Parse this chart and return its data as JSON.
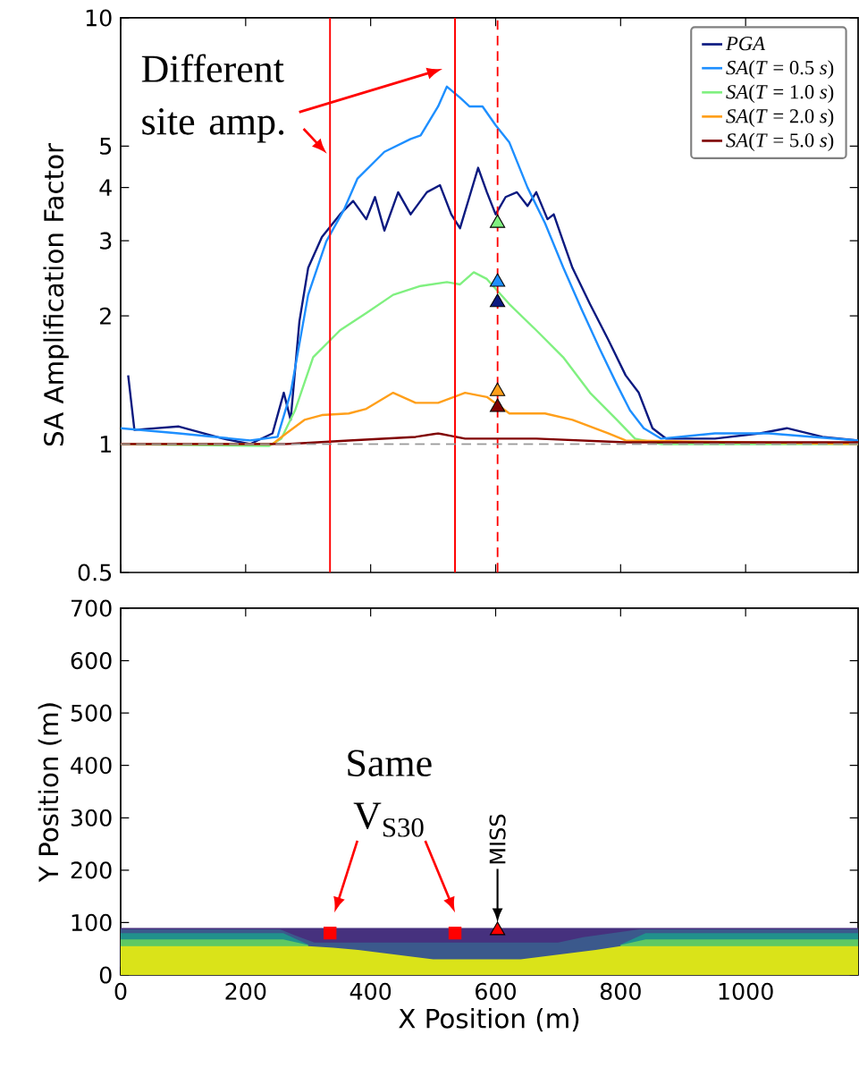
{
  "chart_data": [
    {
      "type": "line",
      "ylabel": "SA Amplification Factor",
      "log": "y",
      "legend": "top right",
      "tick_labels": "y",
      "xlim": [
        0,
        1180
      ],
      "ylim": [
        0.5,
        10
      ],
      "xticks": [
        0,
        200,
        400,
        600,
        800,
        1000
      ],
      "yticks": [
        0.5,
        1,
        2,
        3,
        4,
        5,
        10
      ],
      "annotations": [
        {
          "text": "Different site amp.",
          "x": 330,
          "y": 4.8
        }
      ],
      "ref_lines": [
        {
          "axis": "x",
          "value": 335,
          "color": "#ff0000",
          "line_style": "solid"
        },
        {
          "axis": "x",
          "value": 535,
          "color": "#ff0000",
          "line_style": "solid"
        },
        {
          "axis": "x",
          "value": 603,
          "color": "#ff0000",
          "line_style": "dashed"
        },
        {
          "axis": "y",
          "value": 1,
          "color": "#999999",
          "line_style": "dashed"
        }
      ],
      "series": [
        {
          "name": "*PGA*",
          "color": "#0c1a80",
          "x": [
            12,
            22,
            93,
            164,
            207,
            243,
            261,
            272,
            286,
            300,
            322,
            351,
            372,
            393,
            407,
            422,
            444,
            464,
            490,
            511,
            529,
            543,
            558,
            572,
            586,
            600,
            616,
            634,
            651,
            665,
            683,
            693,
            708,
            723,
            751,
            780,
            808,
            829,
            851,
            873,
            951,
            1023,
            1066,
            1123,
            1180
          ],
          "values": [
            1.45,
            1.08,
            1.1,
            1.03,
            1.0,
            1.06,
            1.32,
            1.14,
            1.94,
            2.59,
            3.06,
            3.46,
            3.72,
            3.37,
            3.8,
            3.17,
            3.9,
            3.46,
            3.9,
            4.05,
            3.46,
            3.21,
            3.8,
            4.45,
            3.9,
            3.46,
            3.8,
            3.9,
            3.62,
            3.9,
            3.37,
            3.46,
            2.99,
            2.59,
            2.13,
            1.76,
            1.45,
            1.32,
            1.09,
            1.03,
            1.03,
            1.06,
            1.09,
            1.04,
            1.02
          ]
        },
        {
          "name": "*SA*(*T* = 0.5 *s*)",
          "color": "#1e8fff",
          "x": [
            0,
            93,
            207,
            251,
            272,
            300,
            329,
            357,
            379,
            422,
            464,
            480,
            508,
            522,
            543,
            558,
            579,
            600,
            622,
            651,
            679,
            708,
            737,
            766,
            794,
            815,
            837,
            865,
            894,
            951,
            1037,
            1180
          ],
          "values": [
            1.09,
            1.06,
            1.02,
            1.04,
            1.32,
            2.24,
            2.99,
            3.54,
            4.2,
            4.85,
            5.2,
            5.3,
            6.2,
            6.9,
            6.5,
            6.2,
            6.2,
            5.6,
            5.1,
            4.0,
            3.3,
            2.6,
            2.08,
            1.68,
            1.38,
            1.2,
            1.09,
            1.03,
            1.04,
            1.06,
            1.06,
            1.02
          ]
        },
        {
          "name": "*SA*(*T* = 1.0 *s*)",
          "color": "#80f080",
          "x": [
            0,
            237,
            257,
            279,
            308,
            351,
            393,
            436,
            480,
            522,
            543,
            565,
            586,
            622,
            665,
            708,
            751,
            794,
            823,
            865,
            1180
          ],
          "values": [
            1.0,
            0.99,
            1.03,
            1.2,
            1.6,
            1.85,
            2.03,
            2.24,
            2.35,
            2.4,
            2.37,
            2.53,
            2.44,
            2.13,
            1.85,
            1.6,
            1.32,
            1.14,
            1.03,
            1.0,
            1.0
          ]
        },
        {
          "name": "*SA*(*T* = 2.0 *s*)",
          "color": "#ff9f1a",
          "x": [
            0,
            243,
            265,
            294,
            322,
            365,
            393,
            436,
            472,
            508,
            551,
            586,
            622,
            679,
            723,
            780,
            808,
            1180
          ],
          "values": [
            1.0,
            1.0,
            1.06,
            1.14,
            1.17,
            1.18,
            1.21,
            1.32,
            1.25,
            1.25,
            1.32,
            1.29,
            1.18,
            1.18,
            1.14,
            1.06,
            1.02,
            1.0
          ]
        },
        {
          "name": "*SA*(*T* = 5.0 *s*)",
          "color": "#800000",
          "x": [
            0,
            265,
            365,
            472,
            508,
            551,
            665,
            808,
            1180
          ],
          "values": [
            1.0,
            1.0,
            1.02,
            1.04,
            1.06,
            1.03,
            1.03,
            1.01,
            1.01
          ]
        },
        {
          "type": "scatter",
          "marker": "triangle",
          "color": "#80f080",
          "x": [
            603
          ],
          "values": [
            3.3
          ]
        },
        {
          "type": "scatter",
          "marker": "triangle",
          "color": "#1e8fff",
          "x": [
            603
          ],
          "values": [
            2.4
          ]
        },
        {
          "type": "scatter",
          "marker": "triangle",
          "color": "#0c1a80",
          "x": [
            603
          ],
          "values": [
            2.15
          ]
        },
        {
          "type": "scatter",
          "marker": "triangle",
          "color": "#ff9f1a",
          "x": [
            603
          ],
          "values": [
            1.33
          ]
        },
        {
          "type": "scatter",
          "marker": "triangle",
          "color": "#800000",
          "x": [
            603
          ],
          "values": [
            1.22
          ]
        }
      ]
    },
    {
      "type": "area",
      "xlabel": "X Position (m)",
      "ylabel": "Y Position (m)",
      "xlim": [
        0,
        1180
      ],
      "ylim": [
        0,
        700
      ],
      "xticks": [
        0,
        200,
        400,
        600,
        800,
        1000
      ],
      "yticks": [
        0,
        100,
        200,
        300,
        400,
        500,
        600,
        700
      ],
      "annotations": [
        "Same V$_{S30}$",
        {
          "text": "MISS",
          "x": 603,
          "y": 100
        }
      ],
      "series": [
        {
          "color": "#46317e",
          "x": [
            0,
            1180
          ],
          "values": [
            90,
            90
          ]
        },
        {
          "color": "#3b598c",
          "x": [
            0,
            255,
            280,
            310,
            700,
            740,
            830,
            1180
          ],
          "values": [
            87,
            87,
            75,
            62,
            62,
            72,
            87,
            87
          ]
        },
        {
          "color": "#21918c",
          "x": [
            0,
            260,
            300
          ],
          "values": [
            80,
            80,
            58
          ]
        },
        {
          "color": "#21918c",
          "x": [
            800,
            840,
            1180
          ],
          "values": [
            58,
            80,
            80
          ]
        },
        {
          "color": "#5ec962",
          "x": [
            0,
            260,
            300
          ],
          "values": [
            68,
            68,
            57
          ]
        },
        {
          "color": "#5ec962",
          "x": [
            800,
            840,
            1180
          ],
          "values": [
            57,
            68,
            68
          ]
        },
        {
          "color": "#dae319",
          "x": [
            0,
            260,
            300,
            340,
            380,
            420,
            460,
            500,
            640,
            680,
            720,
            760,
            800,
            840,
            1180
          ],
          "values": [
            55,
            55,
            55,
            52,
            48,
            42,
            36,
            30,
            30,
            36,
            42,
            48,
            55,
            55,
            55
          ]
        },
        {
          "type": "scatter",
          "marker": "square",
          "color": "#ff0000",
          "x": [
            335,
            535
          ],
          "values": [
            80,
            80
          ]
        },
        {
          "type": "scatter",
          "marker": "triangle",
          "color": "#ff0000",
          "x": [
            603
          ],
          "values": [
            85
          ]
        }
      ]
    }
  ]
}
